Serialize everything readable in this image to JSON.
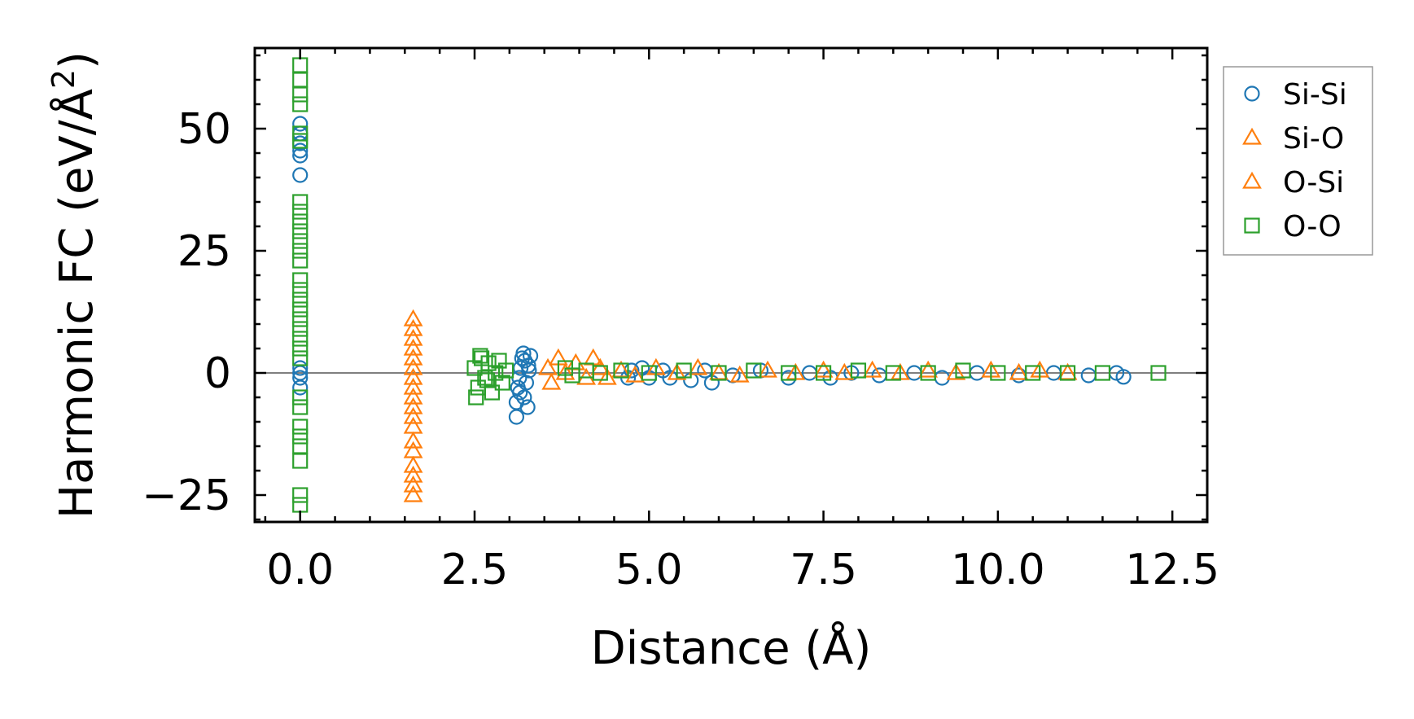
{
  "chart_data": {
    "type": "scatter",
    "xlabel": "Distance (Å)",
    "ylabel_main": "Harmonic FC (eV/Å",
    "ylabel_sup": "2",
    "ylabel_tail": ")",
    "xlim": [
      -0.65,
      13.0
    ],
    "ylim": [
      -30.5,
      66.5
    ],
    "xticks": [
      0.0,
      2.5,
      5.0,
      7.5,
      10.0,
      12.5
    ],
    "xtick_labels": [
      "0.0",
      "2.5",
      "5.0",
      "7.5",
      "10.0",
      "12.5"
    ],
    "yticks": [
      -25,
      0,
      25,
      50
    ],
    "ytick_labels": [
      "−25",
      "0",
      "25",
      "50"
    ],
    "zero_line": true,
    "legend_position": "outside-right-top",
    "legend": [
      {
        "label": "Si-Si",
        "marker": "circle",
        "color": "#1f77b4"
      },
      {
        "label": "Si-O",
        "marker": "triangle",
        "color": "#ff7f0e"
      },
      {
        "label": "O-Si",
        "marker": "triangle",
        "color": "#ff7f0e"
      },
      {
        "label": "O-O",
        "marker": "square",
        "color": "#2ca02c"
      }
    ],
    "series": [
      {
        "name": "Si-Si",
        "marker": "circle",
        "color": "#1f77b4",
        "points": [
          [
            0,
            51
          ],
          [
            0,
            49
          ],
          [
            0,
            47
          ],
          [
            0,
            45.5
          ],
          [
            0,
            44.5
          ],
          [
            0,
            40.5
          ],
          [
            0,
            1
          ],
          [
            0,
            0
          ],
          [
            0,
            -1
          ],
          [
            0,
            -3
          ],
          [
            3.1,
            -9
          ],
          [
            3.1,
            -6
          ],
          [
            3.12,
            -3
          ],
          [
            3.14,
            -1
          ],
          [
            3.16,
            1
          ],
          [
            3.18,
            3
          ],
          [
            3.2,
            4
          ],
          [
            3.22,
            2.5
          ],
          [
            3.24,
            -2
          ],
          [
            3.26,
            -7
          ],
          [
            3.28,
            0.5
          ],
          [
            3.3,
            3.5
          ],
          [
            3.15,
            -4
          ],
          [
            3.21,
            -5
          ],
          [
            3.27,
            1.5
          ],
          [
            4.7,
            -1
          ],
          [
            4.75,
            0.5
          ],
          [
            4.9,
            1
          ],
          [
            5.0,
            -1
          ],
          [
            5.2,
            0.5
          ],
          [
            5.3,
            -1
          ],
          [
            5.6,
            -1.5
          ],
          [
            5.8,
            0.5
          ],
          [
            5.9,
            -2
          ],
          [
            6.2,
            -0.5
          ],
          [
            6.6,
            0.5
          ],
          [
            7.0,
            -1
          ],
          [
            7.3,
            0
          ],
          [
            7.6,
            -1
          ],
          [
            7.9,
            0
          ],
          [
            8.3,
            -0.5
          ],
          [
            8.8,
            0
          ],
          [
            9.2,
            -1
          ],
          [
            9.7,
            0
          ],
          [
            10.3,
            -0.5
          ],
          [
            10.8,
            0
          ],
          [
            11.3,
            -0.5
          ],
          [
            11.7,
            0
          ],
          [
            11.8,
            -0.8
          ]
        ]
      },
      {
        "name": "Si-O / O-Si",
        "marker": "triangle",
        "color": "#ff7f0e",
        "points": [
          [
            1.62,
            11
          ],
          [
            1.62,
            9
          ],
          [
            1.62,
            7
          ],
          [
            1.62,
            5
          ],
          [
            1.62,
            3
          ],
          [
            1.62,
            1
          ],
          [
            1.62,
            -1
          ],
          [
            1.62,
            -3
          ],
          [
            1.62,
            -5
          ],
          [
            1.62,
            -7
          ],
          [
            1.62,
            -9
          ],
          [
            1.62,
            -11
          ],
          [
            1.62,
            -14
          ],
          [
            1.62,
            -16
          ],
          [
            1.62,
            -19
          ],
          [
            1.62,
            -21
          ],
          [
            1.62,
            -23
          ],
          [
            1.62,
            -25
          ],
          [
            3.55,
            1
          ],
          [
            3.6,
            -2
          ],
          [
            3.7,
            3
          ],
          [
            3.8,
            0
          ],
          [
            3.95,
            2
          ],
          [
            4.1,
            -1
          ],
          [
            4.2,
            3
          ],
          [
            4.3,
            1
          ],
          [
            4.4,
            -1
          ],
          [
            4.6,
            0.5
          ],
          [
            4.8,
            -0.5
          ],
          [
            5.1,
            1
          ],
          [
            5.4,
            0
          ],
          [
            5.7,
            1
          ],
          [
            6.0,
            0
          ],
          [
            6.3,
            -0.5
          ],
          [
            6.7,
            0.5
          ],
          [
            7.1,
            0
          ],
          [
            7.5,
            0.5
          ],
          [
            7.8,
            0
          ],
          [
            8.2,
            0.5
          ],
          [
            8.6,
            0
          ],
          [
            9.0,
            0.5
          ],
          [
            9.4,
            0
          ],
          [
            9.9,
            0.5
          ],
          [
            10.3,
            0
          ],
          [
            10.6,
            0.5
          ],
          [
            11.0,
            0
          ]
        ]
      },
      {
        "name": "O-O",
        "marker": "square",
        "color": "#2ca02c",
        "points": [
          [
            0,
            63
          ],
          [
            0,
            60
          ],
          [
            0,
            57
          ],
          [
            0,
            55
          ],
          [
            0,
            49
          ],
          [
            0,
            47.5
          ],
          [
            0,
            35
          ],
          [
            0,
            33
          ],
          [
            0,
            31
          ],
          [
            0,
            29
          ],
          [
            0,
            27
          ],
          [
            0,
            25
          ],
          [
            0,
            23
          ],
          [
            0,
            19
          ],
          [
            0,
            17
          ],
          [
            0,
            15
          ],
          [
            0,
            13
          ],
          [
            0,
            11
          ],
          [
            0,
            9
          ],
          [
            0,
            7
          ],
          [
            0,
            5
          ],
          [
            0,
            3
          ],
          [
            0,
            -5
          ],
          [
            0,
            -7
          ],
          [
            0,
            -11
          ],
          [
            0,
            -13
          ],
          [
            0,
            -15
          ],
          [
            0,
            -18
          ],
          [
            0,
            -25
          ],
          [
            0,
            -27
          ],
          [
            2.5,
            1
          ],
          [
            2.55,
            -3
          ],
          [
            2.6,
            3
          ],
          [
            2.65,
            -1
          ],
          [
            2.7,
            2
          ],
          [
            2.75,
            -4
          ],
          [
            2.8,
            0
          ],
          [
            2.85,
            2.5
          ],
          [
            2.9,
            -2
          ],
          [
            2.95,
            0.5
          ],
          [
            2.52,
            -5
          ],
          [
            2.58,
            3.5
          ],
          [
            2.68,
            -1.5
          ],
          [
            3.8,
            1
          ],
          [
            3.9,
            -0.5
          ],
          [
            4.1,
            0.5
          ],
          [
            4.3,
            0
          ],
          [
            4.6,
            0.5
          ],
          [
            5.0,
            0
          ],
          [
            5.5,
            0.5
          ],
          [
            6.0,
            0
          ],
          [
            6.5,
            0.5
          ],
          [
            7.0,
            0
          ],
          [
            7.5,
            0
          ],
          [
            8.0,
            0.5
          ],
          [
            8.5,
            0
          ],
          [
            9.0,
            0
          ],
          [
            9.5,
            0.5
          ],
          [
            10.0,
            0
          ],
          [
            10.5,
            0
          ],
          [
            11.0,
            0
          ],
          [
            11.5,
            0
          ],
          [
            12.3,
            0
          ]
        ]
      }
    ]
  }
}
